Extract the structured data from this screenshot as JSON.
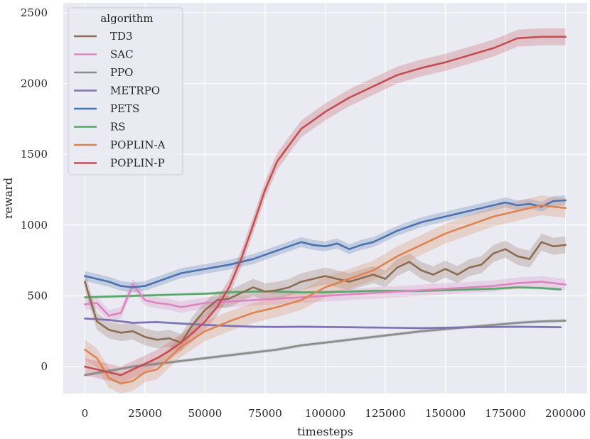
{
  "chart_data": {
    "type": "line",
    "xlabel": "timesteps",
    "ylabel": "reward",
    "xlim": [
      -9000,
      209000
    ],
    "ylim": [
      -190,
      2570
    ],
    "xticks": [
      0,
      25000,
      50000,
      75000,
      100000,
      125000,
      150000,
      175000,
      200000
    ],
    "xtick_labels": [
      "0",
      "25000",
      "50000",
      "75000",
      "100000",
      "125000",
      "150000",
      "175000",
      "200000"
    ],
    "yticks": [
      0,
      500,
      1000,
      1500,
      2000,
      2500
    ],
    "ytick_labels": [
      "0",
      "500",
      "1000",
      "1500",
      "2000",
      "2500"
    ],
    "grid": true,
    "legend": {
      "title": "algorithm",
      "position": "top-left"
    },
    "series": [
      {
        "name": "TD3",
        "color": "#8c6d52",
        "x": [
          0,
          5000,
          10000,
          15000,
          20000,
          25000,
          30000,
          35000,
          40000,
          45000,
          50000,
          55000,
          60000,
          65000,
          70000,
          75000,
          80000,
          85000,
          90000,
          95000,
          100000,
          110000,
          120000,
          125000,
          130000,
          135000,
          140000,
          145000,
          150000,
          155000,
          160000,
          165000,
          170000,
          175000,
          180000,
          185000,
          190000,
          195000,
          200000
        ],
        "y": [
          600,
          320,
          260,
          240,
          250,
          210,
          190,
          200,
          170,
          300,
          400,
          470,
          480,
          520,
          560,
          530,
          540,
          560,
          600,
          620,
          640,
          600,
          650,
          620,
          700,
          740,
          680,
          650,
          690,
          650,
          700,
          720,
          800,
          830,
          780,
          760,
          880,
          850,
          860
        ],
        "band": 60
      },
      {
        "name": "SAC",
        "color": "#dd84c0",
        "x": [
          0,
          5000,
          10000,
          15000,
          20000,
          25000,
          30000,
          35000,
          40000,
          50000,
          60000,
          70000,
          80000,
          90000,
          100000,
          110000,
          120000,
          130000,
          140000,
          150000,
          160000,
          170000,
          180000,
          190000,
          200000
        ],
        "y": [
          440,
          450,
          360,
          380,
          580,
          470,
          450,
          440,
          420,
          450,
          460,
          470,
          480,
          490,
          500,
          510,
          520,
          530,
          540,
          550,
          560,
          570,
          590,
          600,
          580
        ],
        "band": 40
      },
      {
        "name": "PPO",
        "color": "#8c8c8c",
        "x": [
          0,
          10000,
          20000,
          30000,
          40000,
          50000,
          60000,
          70000,
          80000,
          90000,
          100000,
          110000,
          120000,
          130000,
          140000,
          150000,
          160000,
          170000,
          180000,
          190000,
          200000
        ],
        "y": [
          -60,
          -30,
          0,
          20,
          40,
          60,
          80,
          100,
          120,
          150,
          170,
          190,
          210,
          230,
          250,
          265,
          280,
          295,
          310,
          320,
          325
        ],
        "band": 12
      },
      {
        "name": "METRPO",
        "color": "#8172b3",
        "x": [
          0,
          10000,
          20000,
          30000,
          40000,
          50000,
          60000,
          70000,
          80000,
          90000,
          100000,
          110000,
          120000,
          130000,
          140000,
          150000,
          160000,
          170000,
          180000,
          190000,
          198000
        ],
        "y": [
          340,
          330,
          310,
          315,
          305,
          295,
          288,
          282,
          280,
          282,
          280,
          278,
          276,
          274,
          272,
          275,
          278,
          280,
          282,
          280,
          278
        ],
        "band": 8
      },
      {
        "name": "PETS",
        "color": "#4c72b0",
        "x": [
          0,
          5000,
          10000,
          15000,
          20000,
          25000,
          30000,
          40000,
          50000,
          60000,
          70000,
          80000,
          90000,
          95000,
          100000,
          105000,
          110000,
          115000,
          120000,
          130000,
          140000,
          150000,
          160000,
          170000,
          175000,
          180000,
          185000,
          190000,
          195000,
          200000
        ],
        "y": [
          640,
          620,
          600,
          570,
          560,
          570,
          600,
          660,
          690,
          720,
          760,
          820,
          880,
          860,
          850,
          870,
          830,
          860,
          880,
          960,
          1020,
          1060,
          1100,
          1140,
          1160,
          1140,
          1150,
          1130,
          1170,
          1175
        ],
        "band": 35
      },
      {
        "name": "RS",
        "color": "#55a868",
        "x": [
          0,
          10000,
          20000,
          30000,
          40000,
          50000,
          60000,
          70000,
          80000,
          90000,
          100000,
          110000,
          120000,
          130000,
          140000,
          150000,
          160000,
          170000,
          180000,
          190000,
          198000
        ],
        "y": [
          490,
          495,
          500,
          505,
          510,
          515,
          525,
          530,
          530,
          525,
          525,
          530,
          535,
          535,
          535,
          540,
          545,
          550,
          560,
          555,
          545
        ],
        "band": 10
      },
      {
        "name": "POPLIN-A",
        "color": "#dd8452",
        "x": [
          0,
          5000,
          10000,
          15000,
          20000,
          25000,
          30000,
          35000,
          40000,
          50000,
          60000,
          70000,
          80000,
          90000,
          100000,
          110000,
          120000,
          130000,
          140000,
          150000,
          160000,
          170000,
          180000,
          190000,
          200000
        ],
        "y": [
          120,
          60,
          -80,
          -120,
          -100,
          -40,
          -20,
          60,
          140,
          250,
          320,
          380,
          420,
          470,
          560,
          620,
          680,
          780,
          860,
          940,
          1000,
          1060,
          1100,
          1140,
          1120
        ],
        "band": 70
      },
      {
        "name": "POPLIN-P",
        "color": "#c44e52",
        "x": [
          0,
          5000,
          10000,
          15000,
          20000,
          25000,
          30000,
          35000,
          40000,
          45000,
          50000,
          55000,
          60000,
          65000,
          70000,
          75000,
          80000,
          90000,
          100000,
          110000,
          120000,
          130000,
          140000,
          150000,
          160000,
          170000,
          180000,
          190000,
          200000
        ],
        "y": [
          0,
          -20,
          -40,
          -60,
          -20,
          20,
          60,
          110,
          170,
          240,
          320,
          420,
          560,
          760,
          1000,
          1250,
          1450,
          1680,
          1800,
          1900,
          1980,
          2060,
          2110,
          2150,
          2200,
          2250,
          2320,
          2330,
          2330
        ],
        "band": 60
      }
    ]
  }
}
